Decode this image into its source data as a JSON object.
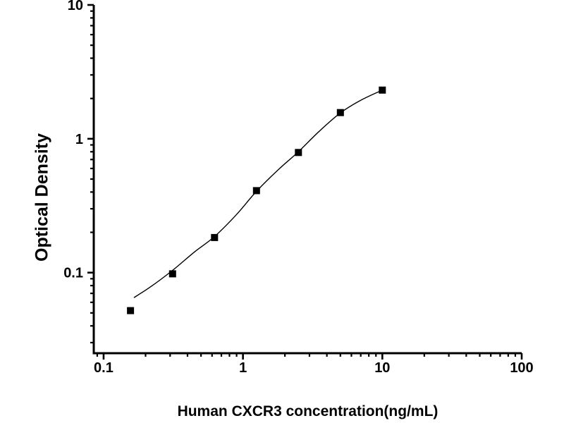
{
  "figure": {
    "background": "#ffffff",
    "foreground": "#000000"
  },
  "chart_data": {
    "type": "scatter",
    "title": "",
    "xlabel": "Human CXCR3 concentration(ng/mL)",
    "ylabel": "Optical Density",
    "x_scale": "log",
    "y_scale": "log",
    "xlim": [
      0.085,
      100
    ],
    "ylim": [
      0.025,
      10
    ],
    "grid": false,
    "legend": null,
    "x_major_ticks": [
      {
        "value": 0.1,
        "label": "0.1"
      },
      {
        "value": 1,
        "label": "1"
      },
      {
        "value": 10,
        "label": "10"
      },
      {
        "value": 100,
        "label": "100"
      }
    ],
    "y_major_ticks": [
      {
        "value": 0.1,
        "label": "0.1"
      },
      {
        "value": 1,
        "label": "1"
      },
      {
        "value": 10,
        "label": "10"
      }
    ],
    "marker": {
      "shape": "square",
      "size": 10,
      "color": "#000000"
    },
    "line_color": "#000000",
    "series": [
      {
        "name": "standard-curve-points",
        "points": [
          {
            "x": 0.156,
            "y": 0.052
          },
          {
            "x": 0.3125,
            "y": 0.098
          },
          {
            "x": 0.625,
            "y": 0.183
          },
          {
            "x": 1.25,
            "y": 0.41
          },
          {
            "x": 2.5,
            "y": 0.79
          },
          {
            "x": 5,
            "y": 1.57
          },
          {
            "x": 10,
            "y": 2.31
          }
        ]
      }
    ],
    "fit_curve": [
      [
        0.165,
        0.065
      ],
      [
        0.22,
        0.079
      ],
      [
        0.3125,
        0.104
      ],
      [
        0.45,
        0.143
      ],
      [
        0.625,
        0.186
      ],
      [
        0.9,
        0.272
      ],
      [
        1.25,
        0.405
      ],
      [
        1.8,
        0.59
      ],
      [
        2.5,
        0.8
      ],
      [
        3.5,
        1.13
      ],
      [
        5,
        1.56
      ],
      [
        7,
        1.94
      ],
      [
        10,
        2.31
      ]
    ]
  }
}
